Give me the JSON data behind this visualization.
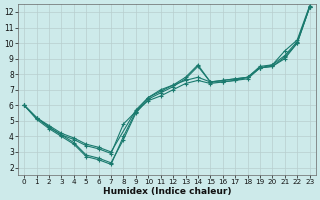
{
  "xlabel": "Humidex (Indice chaleur)",
  "ylabel": "",
  "xlim": [
    -0.5,
    23.5
  ],
  "ylim": [
    1.5,
    12.5
  ],
  "xticks": [
    0,
    1,
    2,
    3,
    4,
    5,
    6,
    7,
    8,
    9,
    10,
    11,
    12,
    13,
    14,
    15,
    16,
    17,
    18,
    19,
    20,
    21,
    22,
    23
  ],
  "yticks": [
    2,
    3,
    4,
    5,
    6,
    7,
    8,
    9,
    10,
    11,
    12
  ],
  "bg_color": "#cdeaea",
  "grid_color": "#b8cece",
  "line_color": "#1a7a6e",
  "lines": [
    {
      "x": [
        0,
        1,
        2,
        3,
        4,
        5,
        6,
        7,
        8,
        9,
        10,
        11,
        12,
        13,
        14,
        15,
        16,
        17,
        18,
        19,
        20,
        21,
        22,
        23
      ],
      "y": [
        6.0,
        5.2,
        4.6,
        4.1,
        3.8,
        3.4,
        3.2,
        2.9,
        4.8,
        5.6,
        6.3,
        6.6,
        7.0,
        7.4,
        7.6,
        7.4,
        7.5,
        7.6,
        7.8,
        8.4,
        8.5,
        9.1,
        10.0,
        12.3
      ]
    },
    {
      "x": [
        0,
        1,
        2,
        3,
        4,
        5,
        6,
        7,
        8,
        9,
        10,
        11,
        12,
        13,
        14,
        15,
        16,
        17,
        18,
        19,
        20,
        21,
        22,
        23
      ],
      "y": [
        6.0,
        5.2,
        4.6,
        4.1,
        3.6,
        2.8,
        2.6,
        2.3,
        3.8,
        5.5,
        6.4,
        6.8,
        7.2,
        7.7,
        8.5,
        7.5,
        7.6,
        7.7,
        7.8,
        8.5,
        8.6,
        9.5,
        10.2,
        12.4
      ]
    },
    {
      "x": [
        0,
        1,
        2,
        3,
        4,
        5,
        6,
        7,
        8,
        9,
        10,
        11,
        12,
        13,
        14,
        15,
        16,
        17,
        18,
        19,
        20,
        21,
        22,
        23
      ],
      "y": [
        6.0,
        5.1,
        4.5,
        4.0,
        3.5,
        2.7,
        2.5,
        2.2,
        4.0,
        5.6,
        6.5,
        6.9,
        7.3,
        7.8,
        8.6,
        7.5,
        7.6,
        7.7,
        7.8,
        8.4,
        8.5,
        9.0,
        10.0,
        12.3
      ]
    },
    {
      "x": [
        0,
        1,
        2,
        3,
        4,
        5,
        6,
        7,
        9,
        10,
        11,
        12,
        13,
        14,
        15,
        16,
        17,
        18,
        19,
        20,
        21,
        22,
        23
      ],
      "y": [
        6.0,
        5.2,
        4.7,
        4.2,
        3.9,
        3.5,
        3.3,
        3.0,
        5.7,
        6.5,
        7.0,
        7.3,
        7.6,
        7.8,
        7.5,
        7.5,
        7.6,
        7.7,
        8.4,
        8.6,
        9.2,
        10.1,
        12.3
      ]
    }
  ]
}
